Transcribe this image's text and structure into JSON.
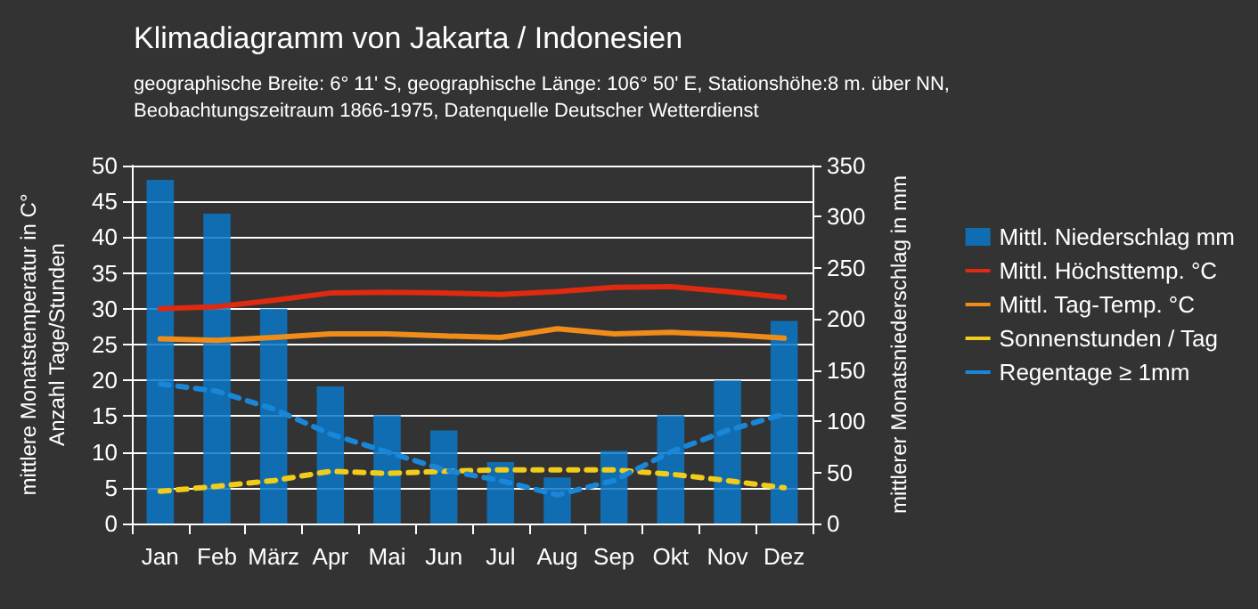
{
  "chart_data": {
    "type": "bar",
    "title": "Klimadiagramm von Jakarta / Indonesien",
    "subtitle": "geographische Breite: 6° 11' S, geographische Länge: 106° 50' E, Stationshöhe:8 m. über NN,\nBeobachtungszeitraum 1866-1975, Datenquelle Deutscher Wetterdienst",
    "ylabel": "mittlere Monatstemperatur in C°\nAnzahl Tage/Stunden",
    "y2label": "mittlerer Monatsniederschlag in mm",
    "categories": [
      "Jan",
      "Feb",
      "März",
      "Apr",
      "Mai",
      "Jun",
      "Jul",
      "Aug",
      "Sep",
      "Okt",
      "Nov",
      "Dez"
    ],
    "series": [
      {
        "name": "Mittl. Niederschlag mm",
        "axis": "y2",
        "color": "#0a78c8",
        "values": [
          336,
          303,
          210,
          134,
          106,
          91,
          60,
          45,
          71,
          106,
          140,
          198
        ]
      },
      {
        "name": "Mittl. Höchsttemp. °C",
        "type": "line",
        "color": "#dd2a10",
        "line_style": "solid",
        "values": [
          30,
          30.3,
          31.2,
          32.2,
          32.3,
          32.2,
          32,
          32.4,
          33,
          33.1,
          32.4,
          31.6
        ]
      },
      {
        "name": "Mittl. Tag-Temp. °C",
        "type": "line",
        "color": "#f08c1a",
        "line_style": "solid",
        "values": [
          25.8,
          25.6,
          26,
          26.5,
          26.5,
          26.2,
          26,
          27.2,
          26.5,
          26.7,
          26.4,
          25.9
        ]
      },
      {
        "name": "Sonnenstunden / Tag",
        "type": "line",
        "color": "#f2cc1a",
        "line_style": "dashed",
        "values": [
          4.5,
          5.2,
          6,
          7.3,
          7,
          7.3,
          7.5,
          7.5,
          7.5,
          6.9,
          6,
          5
        ]
      },
      {
        "name": "Regentage ≥ 1mm",
        "type": "line",
        "color": "#1a86d8",
        "line_style": "dashed",
        "values": [
          19.5,
          18.5,
          16,
          12.5,
          10,
          7.5,
          6,
          4,
          6,
          10,
          13,
          15.3
        ]
      }
    ],
    "ylim": [
      0,
      50
    ],
    "yticks": [
      0,
      5,
      10,
      15,
      20,
      25,
      30,
      35,
      40,
      45,
      50
    ],
    "y2lim": [
      0,
      350
    ],
    "y2ticks": [
      0,
      50,
      100,
      150,
      200,
      250,
      300,
      350
    ],
    "grid": "y",
    "legend": "right",
    "marker": "none"
  }
}
